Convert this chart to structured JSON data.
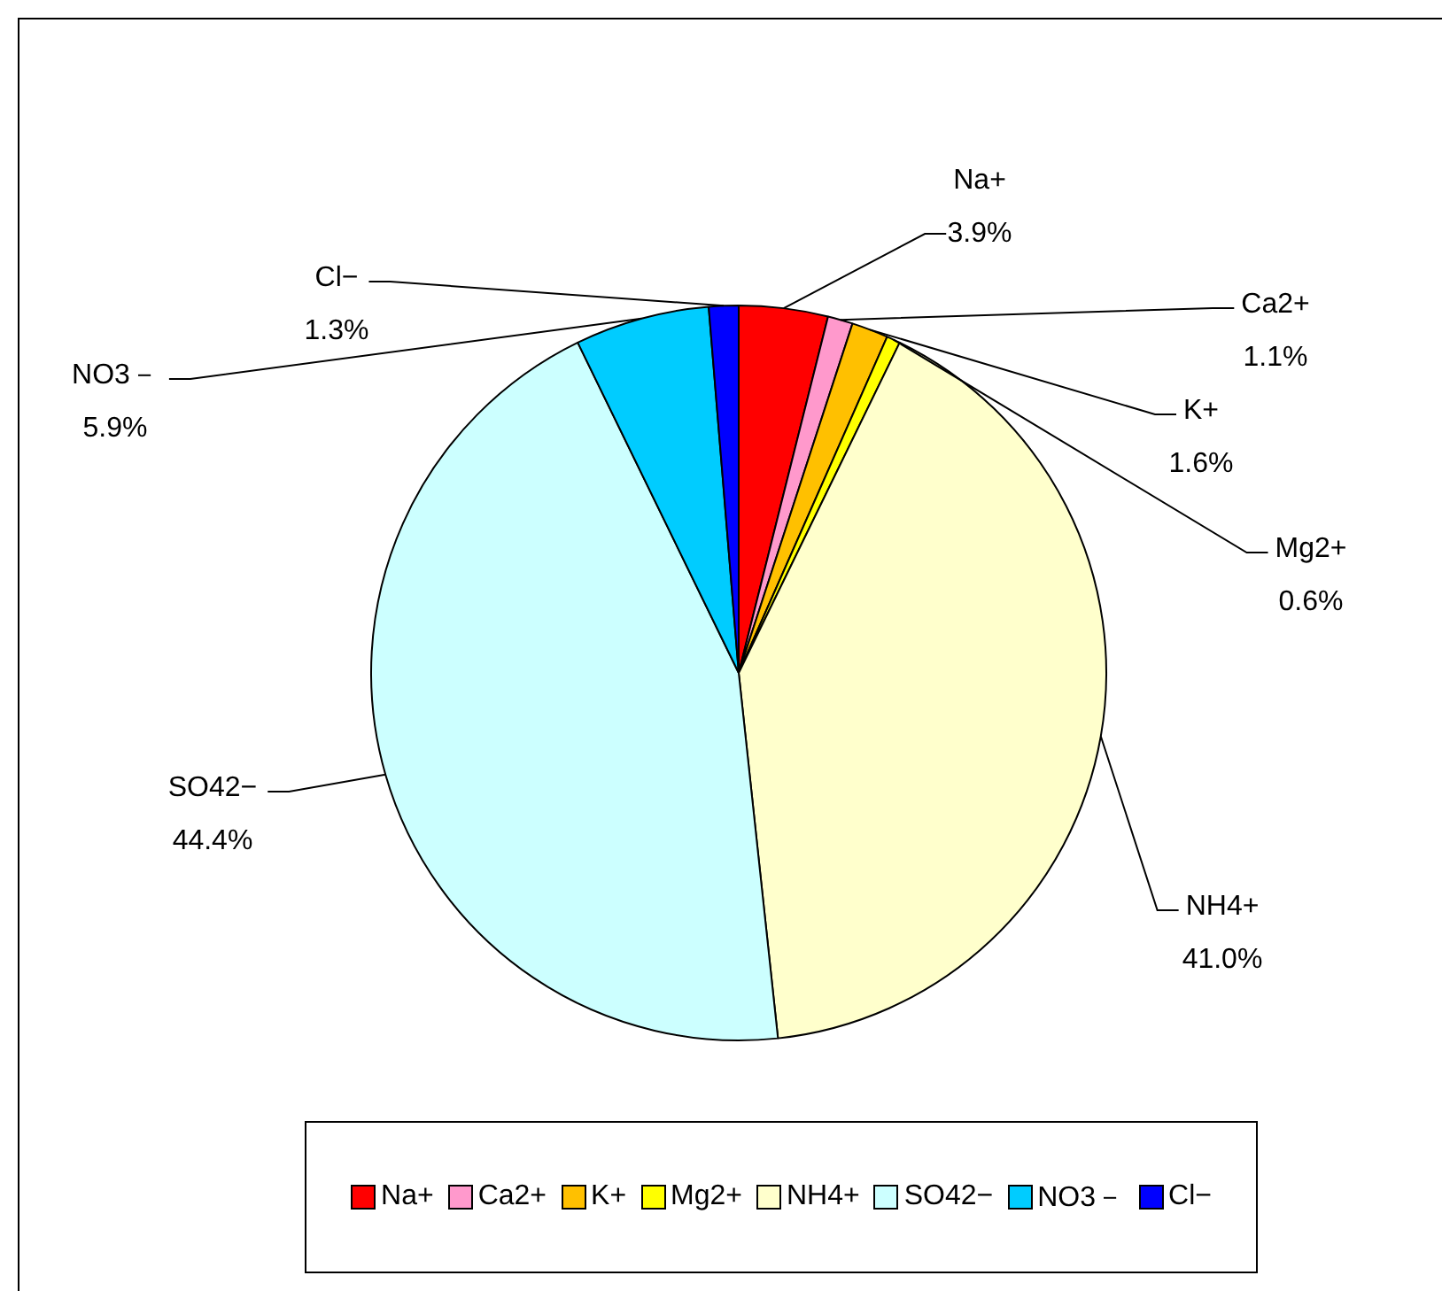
{
  "chart_data": {
    "type": "pie",
    "categories": [
      "Na+",
      "Ca2+",
      "K+",
      "Mg2+",
      "NH4+",
      "SO42−",
      "NO3－",
      "Cl−"
    ],
    "values": [
      3.9,
      1.1,
      1.6,
      0.6,
      41.0,
      44.4,
      5.9,
      1.3
    ],
    "value_labels": [
      "3.9%",
      "1.1%",
      "1.6%",
      "0.6%",
      "41.0%",
      "44.4%",
      "5.9%",
      "1.3%"
    ],
    "colors": [
      "#ff0000",
      "#ff99cc",
      "#ffc000",
      "#ffff00",
      "#ffffcc",
      "#ccffff",
      "#00ccff",
      "#0000ff"
    ],
    "legend": "bottom"
  }
}
